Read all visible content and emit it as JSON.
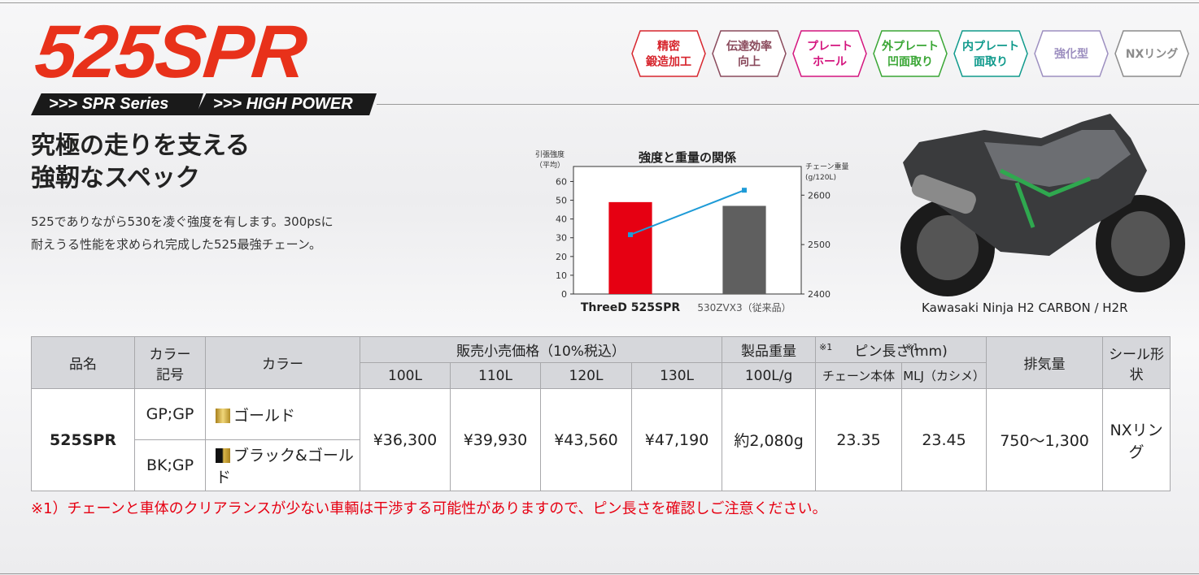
{
  "header": {
    "title": "525SPR",
    "tags": [
      ">>> SPR Series",
      ">>> HIGH POWER"
    ]
  },
  "badges": [
    {
      "lines": [
        "精密",
        "鍛造加工"
      ],
      "color": "#d7262e"
    },
    {
      "lines": [
        "伝達効率",
        "向上"
      ],
      "color": "#8a4a5c"
    },
    {
      "lines": [
        "プレート",
        "ホール"
      ],
      "color": "#d4157e"
    },
    {
      "lines": [
        "外プレート",
        "凹面取り"
      ],
      "color": "#3aa635"
    },
    {
      "lines": [
        "内プレート",
        "面取り"
      ],
      "color": "#109a8c"
    },
    {
      "lines": [
        "強化型"
      ],
      "color": "#9d8fc0"
    },
    {
      "lines": [
        "NXリング"
      ],
      "color": "#8c8c8c"
    }
  ],
  "heading": [
    "究極の走りを支える",
    "強靭なスペック"
  ],
  "description": [
    "525でありながら530を凌ぐ強度を有します。300psに",
    "耐えうる性能を求められ完成した525最強チェーン。"
  ],
  "chart_data": {
    "type": "bar_line",
    "title": "強度と重量の関係",
    "y_label": [
      "引張強度",
      "（平均）"
    ],
    "y2_label": [
      "チェーン重量",
      "(g/120L)"
    ],
    "categories": [
      "ThreeD 525SPR",
      "530ZVX3（従来品）"
    ],
    "series": [
      {
        "type": "bar",
        "colors": [
          "#e60012",
          "#5f5f5f"
        ],
        "values": [
          49,
          47
        ]
      },
      {
        "type": "line",
        "axis": "y2",
        "color": "#1e9bd7",
        "values": [
          2520,
          2610
        ]
      }
    ],
    "ylim": [
      0,
      68
    ],
    "yticks": [
      0,
      10,
      20,
      30,
      40,
      50,
      60
    ],
    "y2lim": [
      2400,
      2658
    ],
    "y2ticks": [
      2400,
      2500,
      2600
    ]
  },
  "image_caption": "Kawasaki Ninja H2 CARBON / H2R",
  "table": {
    "header": {
      "name": "品名",
      "color_code": [
        "カラー",
        "記号"
      ],
      "color": "カラー",
      "price": "販売小売価格（10%税込）",
      "lengths": [
        "100L",
        "110L",
        "120L",
        "130L"
      ],
      "weight": "製品重量",
      "weight_unit": "100L/g",
      "pin": "ピン長さ(mm)",
      "pin_cols": [
        "チェーン本体",
        "MLJ（カシメ）"
      ],
      "displacement": "排気量",
      "seal": "シール形状"
    },
    "rows": [
      {
        "name": "525SPR",
        "variants": [
          {
            "code": "GP;GP",
            "color": "ゴールド"
          },
          {
            "code": "BK;GP",
            "color": "ブラック&ゴールド"
          }
        ],
        "prices": [
          "¥36,300",
          "¥39,930",
          "¥43,560",
          "¥47,190"
        ],
        "weight": "約2,080g",
        "pin_body": {
          "note": "※1",
          "value": "23.35"
        },
        "pin_mlj": {
          "note": "※1",
          "value": "23.45"
        },
        "displacement": "750〜1,300",
        "seal": "NXリング"
      }
    ]
  },
  "footnote": "※1）チェーンと車体のクリアランスが少ない車輌は干渉する可能性がありますので、ピン長さを確認しご注意ください。"
}
